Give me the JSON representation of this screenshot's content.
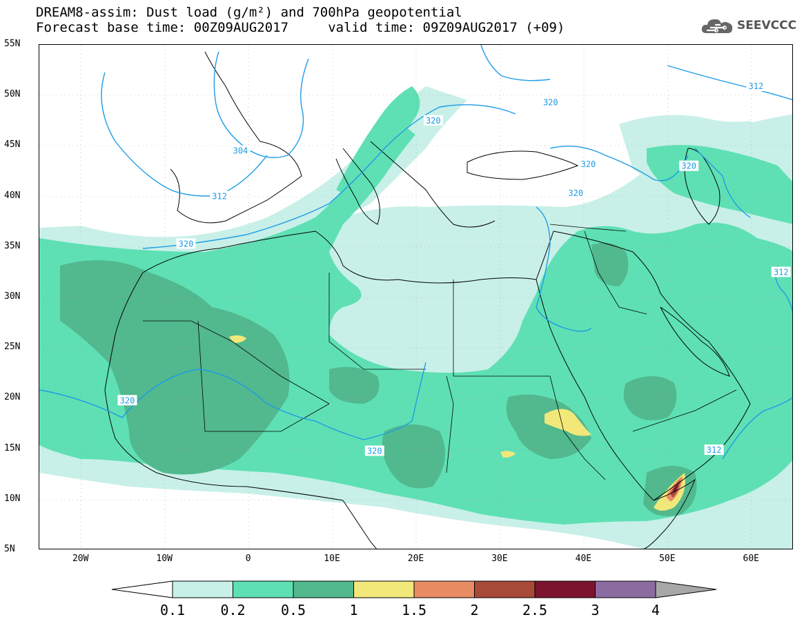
{
  "title": {
    "line1": "DREAM8-assim: Dust load (g/m²) and 700hPa geopotential",
    "line2": "Forecast base time: 00Z09AUG2017     valid time: 09Z09AUG2017 (+09)"
  },
  "logo": {
    "text": "SEEVCCC",
    "icon": "cloud-icon"
  },
  "map": {
    "lat_labels": [
      "55N",
      "50N",
      "45N",
      "40N",
      "35N",
      "30N",
      "25N",
      "20N",
      "15N",
      "10N",
      "5N"
    ],
    "lon_labels": [
      "20W",
      "10W",
      "0",
      "10E",
      "20E",
      "30E",
      "40E",
      "50E",
      "60E"
    ],
    "extent": {
      "lon_min": -25,
      "lon_max": 65,
      "lat_min": 5,
      "lat_max": 55
    },
    "contour_labels": [
      {
        "text": "304",
        "lon": -1,
        "lat": 44.5
      },
      {
        "text": "312",
        "lon": -3.5,
        "lat": 40
      },
      {
        "text": "320",
        "lon": -7.5,
        "lat": 35.3
      },
      {
        "text": "320",
        "lon": -14.5,
        "lat": 19.8
      },
      {
        "text": "320",
        "lon": 15,
        "lat": 14.8
      },
      {
        "text": "320",
        "lon": 22,
        "lat": 47.5
      },
      {
        "text": "320",
        "lon": 36,
        "lat": 49.3
      },
      {
        "text": "320",
        "lon": 40.5,
        "lat": 43.2
      },
      {
        "text": "320",
        "lon": 52.5,
        "lat": 43
      },
      {
        "text": "320",
        "lon": 39,
        "lat": 40.3
      },
      {
        "text": "312",
        "lon": 60.5,
        "lat": 50.9
      },
      {
        "text": "312",
        "lon": 63.5,
        "lat": 32.5
      },
      {
        "text": "312",
        "lon": 55.5,
        "lat": 14.9
      }
    ]
  },
  "colorbar": {
    "labels": [
      "0.1",
      "0.2",
      "0.5",
      "1",
      "1.5",
      "2",
      "2.5",
      "3",
      "4"
    ],
    "colors": [
      "#c8f0e8",
      "#5ee0b4",
      "#52b88e",
      "#f2e87a",
      "#e88c64",
      "#a84a38",
      "#7c1430",
      "#8c6ca0"
    ],
    "under_color": "#ffffff",
    "over_color": "#a8a8a8"
  }
}
